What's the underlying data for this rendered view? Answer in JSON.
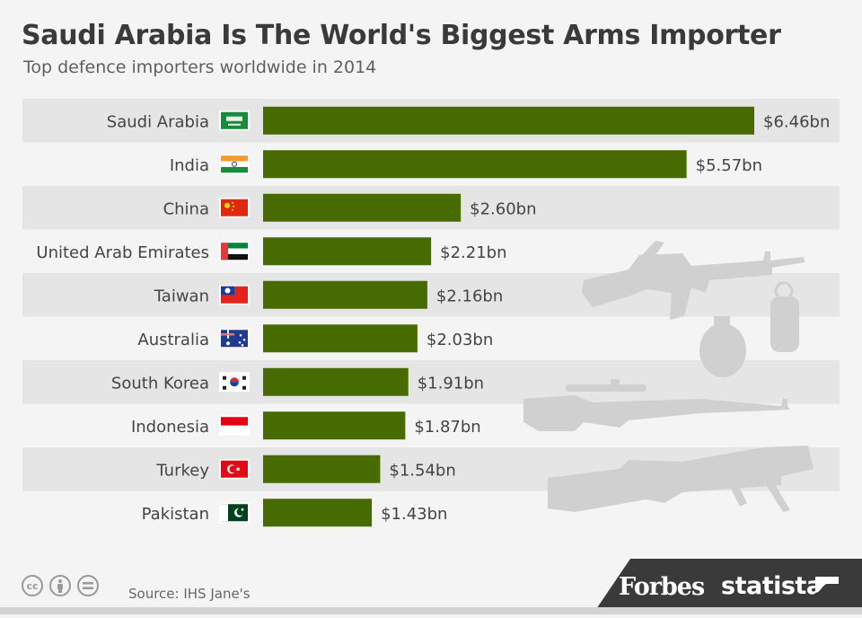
{
  "header": {
    "title": "Saudi Arabia Is The World's Biggest Arms Importer",
    "subtitle": "Top defence importers worldwide in 2014"
  },
  "footer": {
    "source": "Source: IHS Jane's",
    "brand_forbes": "Forbes",
    "brand_statista": "statista"
  },
  "icons": [
    "cc-icon",
    "by-icon",
    "nd-icon",
    "rifle-icon",
    "grenade-icon",
    "sniper-rifle-icon",
    "rocket-launcher-icon",
    "flag-icons"
  ],
  "colors": {
    "bar": "#476b00",
    "row_stripe": "#e5e5e5",
    "background": "#f4f4f4",
    "text": "#444444",
    "brand_band": "#3a3a3a"
  },
  "chart_data": {
    "type": "bar",
    "orientation": "horizontal",
    "title": "Saudi Arabia Is The World's Biggest Arms Importer",
    "subtitle": "Top defence importers worldwide in 2014",
    "categories": [
      "Saudi Arabia",
      "India",
      "China",
      "United Arab Emirates",
      "Taiwan",
      "Australia",
      "South Korea",
      "Indonesia",
      "Turkey",
      "Pakistan"
    ],
    "values": [
      6.46,
      5.57,
      2.6,
      2.21,
      2.16,
      2.03,
      1.91,
      1.87,
      1.54,
      1.43
    ],
    "labels": [
      "$6.46bn",
      "$5.57bn",
      "$2.60bn",
      "$2.21bn",
      "$2.16bn",
      "$2.03bn",
      "$1.91bn",
      "$1.87bn",
      "$1.54bn",
      "$1.43bn"
    ],
    "unit": "bn",
    "xlim": [
      0,
      6.46
    ],
    "grid": false,
    "legend": "none"
  }
}
